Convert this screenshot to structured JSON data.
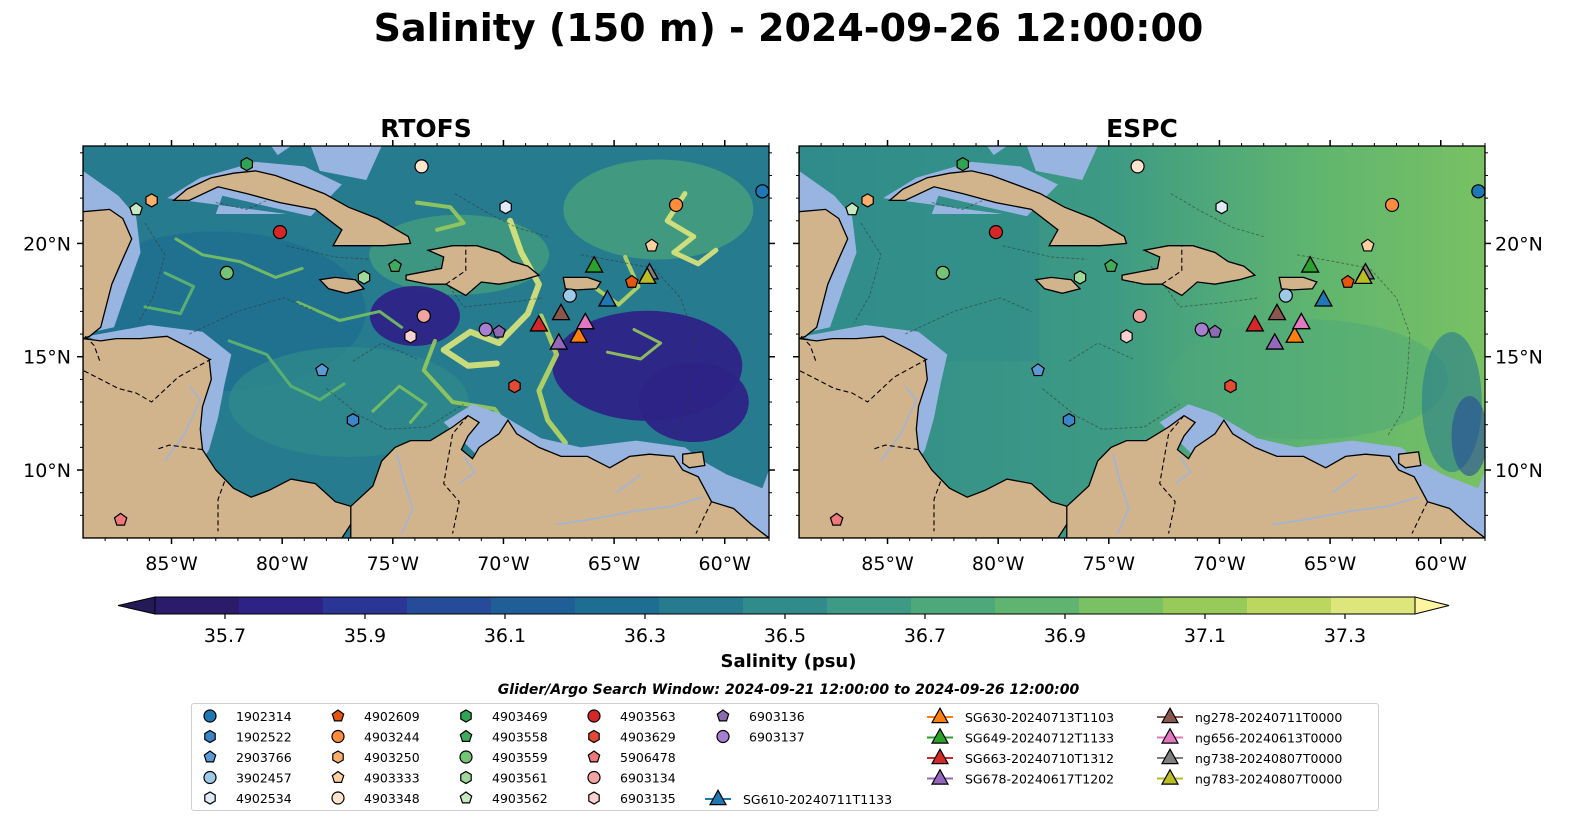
{
  "title": "Salinity (150 m) - 2024-09-26 12:00:00",
  "panels": [
    {
      "name": "RTOFS",
      "style": "eddy"
    },
    {
      "name": "ESPC",
      "style": "smooth"
    }
  ],
  "axes": {
    "lon_ticks": [
      "85°W",
      "80°W",
      "75°W",
      "70°W",
      "65°W",
      "60°W"
    ],
    "lat_ticks": [
      "20°N",
      "15°N",
      "10°N"
    ],
    "lon_range": [
      -89,
      -58
    ],
    "lat_range": [
      7,
      24.3
    ]
  },
  "colorbar": {
    "label": "Salinity (psu)",
    "ticks": [
      "35.7",
      "35.9",
      "36.1",
      "36.3",
      "36.5",
      "36.7",
      "36.9",
      "37.1",
      "37.3"
    ],
    "levels": [
      35.6,
      37.4
    ],
    "colors": [
      "#2a1c6a",
      "#2d2387",
      "#2b3595",
      "#264b99",
      "#1f5e96",
      "#1e6d92",
      "#277b8e",
      "#308c8a",
      "#3d9a84",
      "#4da87a",
      "#5fb56f",
      "#79c163",
      "#98ca5a",
      "#bbd760",
      "#dde67a"
    ],
    "extend": "both"
  },
  "land_color": "#d2b48c",
  "shelf_color": "#98b4e0",
  "search_window": "Glider/Argo Search Window: 2024-09-21 12:00:00 to 2024-09-26 12:00:00",
  "floats": [
    {
      "id": "1902314",
      "marker": "circle",
      "color": "#1f77b4",
      "lon": -58.3,
      "lat": 22.3
    },
    {
      "id": "1902522",
      "marker": "hexagon",
      "color": "#3a86c8",
      "lon": -76.8,
      "lat": 12.2
    },
    {
      "id": "2903766",
      "marker": "pentagon",
      "color": "#5a9ad6",
      "lon": -78.2,
      "lat": 14.4
    },
    {
      "id": "3902457",
      "marker": "circle",
      "color": "#9ecae9",
      "lon": -67.0,
      "lat": 17.7
    },
    {
      "id": "4902534",
      "marker": "hexagon",
      "color": "#deebf7",
      "lon": -69.9,
      "lat": 21.6
    },
    {
      "id": "4902609",
      "marker": "pentagon",
      "color": "#e6550d",
      "lon": -64.2,
      "lat": 18.3
    },
    {
      "id": "4903244",
      "marker": "circle",
      "color": "#fd8d3c",
      "lon": -62.2,
      "lat": 21.7
    },
    {
      "id": "4903250",
      "marker": "hexagon",
      "color": "#fdae6b",
      "lon": -85.9,
      "lat": 21.9
    },
    {
      "id": "4903333",
      "marker": "pentagon",
      "color": "#fdd0a2",
      "lon": -63.3,
      "lat": 19.9
    },
    {
      "id": "4903348",
      "marker": "circle",
      "color": "#fee6ce",
      "lon": -73.7,
      "lat": 23.4
    },
    {
      "id": "4903469",
      "marker": "hexagon",
      "color": "#31a354",
      "lon": -81.6,
      "lat": 23.5
    },
    {
      "id": "4903558",
      "marker": "pentagon",
      "color": "#41ab5d",
      "lon": -74.9,
      "lat": 19.0
    },
    {
      "id": "4903559",
      "marker": "circle",
      "color": "#74c476",
      "lon": -82.5,
      "lat": 18.7
    },
    {
      "id": "4903561",
      "marker": "hexagon",
      "color": "#a1d99b",
      "lon": -76.3,
      "lat": 18.5
    },
    {
      "id": "4903562",
      "marker": "pentagon",
      "color": "#c7e9c0",
      "lon": -86.6,
      "lat": 21.5
    },
    {
      "id": "4903563",
      "marker": "circle",
      "color": "#d62728",
      "lon": -80.1,
      "lat": 20.5
    },
    {
      "id": "4903629",
      "marker": "hexagon",
      "color": "#e34a33",
      "lon": -69.5,
      "lat": 13.7
    },
    {
      "id": "5906478",
      "marker": "pentagon",
      "color": "#f07878",
      "lon": -87.3,
      "lat": 7.8
    },
    {
      "id": "6903134",
      "marker": "circle",
      "color": "#f4a3a3",
      "lon": -73.6,
      "lat": 16.8
    },
    {
      "id": "6903135",
      "marker": "hexagon",
      "color": "#fbd0d0",
      "lon": -74.2,
      "lat": 15.9
    },
    {
      "id": "6903136",
      "marker": "pentagon",
      "color": "#8c6bb1",
      "lon": -70.2,
      "lat": 16.1
    },
    {
      "id": "6903137",
      "marker": "circle",
      "color": "#a67fd0",
      "lon": -70.8,
      "lat": 16.2
    }
  ],
  "gliders": [
    {
      "id": "SG610-20240711T1133",
      "color": "#1f77b4",
      "lon": -65.3,
      "lat": 17.5
    },
    {
      "id": "SG630-20240713T1103",
      "color": "#ff7f0e",
      "lon": -66.6,
      "lat": 15.9
    },
    {
      "id": "SG649-20240712T1133",
      "color": "#2ca02c",
      "lon": -65.9,
      "lat": 19.0
    },
    {
      "id": "SG663-20240710T1312",
      "color": "#d62728",
      "lon": -68.4,
      "lat": 16.4
    },
    {
      "id": "SG678-20240617T1202",
      "color": "#9467bd",
      "lon": -67.5,
      "lat": 15.6
    },
    {
      "id": "ng278-20240711T0000",
      "color": "#8c564b",
      "lon": -67.4,
      "lat": 16.9
    },
    {
      "id": "ng656-20240613T0000",
      "color": "#e377c2",
      "lon": -66.3,
      "lat": 16.5
    },
    {
      "id": "ng738-20240807T0000",
      "color": "#7f7f7f",
      "lon": -63.4,
      "lat": 18.7
    },
    {
      "id": "ng783-20240807T0000",
      "color": "#bcbd22",
      "lon": -63.5,
      "lat": 18.5
    }
  ]
}
